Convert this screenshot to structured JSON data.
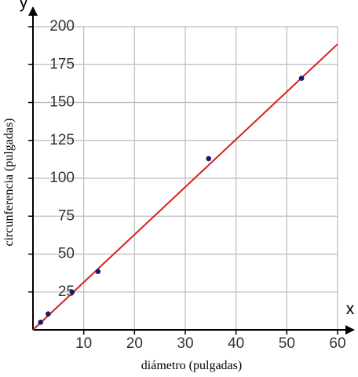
{
  "chart_data": {
    "type": "scatter",
    "x_label": "x",
    "y_label": "y",
    "x_title": "diámetro (pulgadas)",
    "y_title": "circunferencia (pulgadas)",
    "x": [
      1.5,
      3,
      7.7,
      12.8,
      34.6,
      52.9
    ],
    "values": [
      5,
      10.5,
      25,
      38.5,
      113,
      166
    ],
    "color": "#1a1a6e",
    "fit_line": {
      "x": [
        0,
        60
      ],
      "y": [
        0,
        188.5
      ],
      "color": "#d62020"
    },
    "xlim": [
      0,
      60
    ],
    "ylim": [
      0,
      200
    ],
    "xticks": [
      10,
      20,
      30,
      40,
      50,
      60
    ],
    "yticks": [
      25,
      50,
      75,
      100,
      125,
      150,
      175,
      200
    ],
    "grid": true
  }
}
